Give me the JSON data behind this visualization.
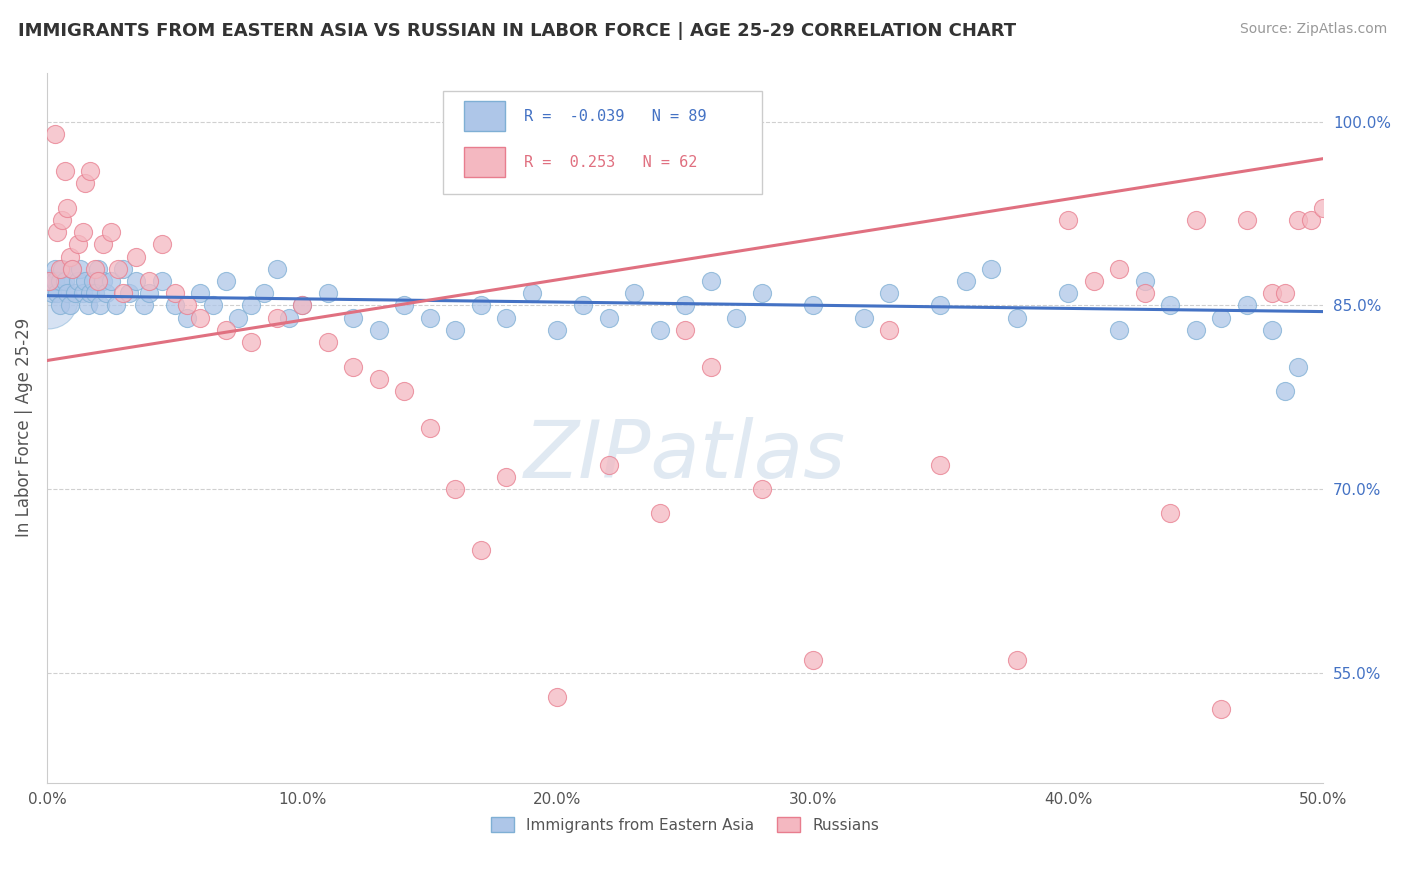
{
  "title": "IMMIGRANTS FROM EASTERN ASIA VS RUSSIAN IN LABOR FORCE | AGE 25-29 CORRELATION CHART",
  "source": "Source: ZipAtlas.com",
  "xlabel": "",
  "ylabel": "In Labor Force | Age 25-29",
  "x_tick_labels": [
    "0.0%",
    "10.0%",
    "20.0%",
    "30.0%",
    "40.0%",
    "50.0%"
  ],
  "x_tick_values": [
    0,
    10,
    20,
    30,
    40,
    50
  ],
  "y_tick_labels": [
    "55.0%",
    "70.0%",
    "85.0%",
    "100.0%"
  ],
  "y_tick_values": [
    55,
    70,
    85,
    100
  ],
  "xlim": [
    0,
    50
  ],
  "ylim": [
    46,
    104
  ],
  "series1_name": "Immigrants from Eastern Asia",
  "series1_color": "#aec6e8",
  "series1_edge_color": "#7fafd4",
  "series1_line_color": "#4472c4",
  "series1_R": -0.039,
  "series1_N": 89,
  "series2_name": "Russians",
  "series2_color": "#f4b8c1",
  "series2_edge_color": "#e87d8e",
  "series2_line_color": "#e07080",
  "series2_R": 0.253,
  "series2_N": 62,
  "watermark_text": "ZIPatlas",
  "background_color": "#ffffff",
  "scatter1_x": [
    0.1,
    0.2,
    0.3,
    0.3,
    0.4,
    0.5,
    0.5,
    0.6,
    0.7,
    0.8,
    0.9,
    1.0,
    1.1,
    1.2,
    1.3,
    1.4,
    1.5,
    1.6,
    1.7,
    1.8,
    1.9,
    2.0,
    2.1,
    2.2,
    2.3,
    2.5,
    2.7,
    3.0,
    3.2,
    3.5,
    3.8,
    4.0,
    4.5,
    5.0,
    5.5,
    6.0,
    6.5,
    7.0,
    7.5,
    8.0,
    8.5,
    9.0,
    9.5,
    10.0,
    11.0,
    12.0,
    13.0,
    14.0,
    15.0,
    16.0,
    17.0,
    18.0,
    19.0,
    20.0,
    21.0,
    22.0,
    23.0,
    24.0,
    25.0,
    26.0,
    27.0,
    28.0,
    30.0,
    32.0,
    33.0,
    35.0,
    36.0,
    37.0,
    38.0,
    40.0,
    42.0,
    43.0,
    44.0,
    45.0,
    46.0,
    47.0,
    48.0,
    48.5,
    49.0
  ],
  "scatter1_y": [
    87,
    86,
    88,
    87,
    86,
    87,
    85,
    88,
    87,
    86,
    85,
    88,
    86,
    87,
    88,
    86,
    87,
    85,
    86,
    87,
    86,
    88,
    85,
    87,
    86,
    87,
    85,
    88,
    86,
    87,
    85,
    86,
    87,
    85,
    84,
    86,
    85,
    87,
    84,
    85,
    86,
    88,
    84,
    85,
    86,
    84,
    83,
    85,
    84,
    83,
    85,
    84,
    86,
    83,
    85,
    84,
    86,
    83,
    85,
    87,
    84,
    86,
    85,
    84,
    86,
    85,
    87,
    88,
    84,
    86,
    83,
    87,
    85,
    83,
    84,
    85,
    83,
    78,
    80
  ],
  "scatter2_x": [
    0.1,
    0.3,
    0.4,
    0.5,
    0.6,
    0.7,
    0.8,
    0.9,
    1.0,
    1.2,
    1.4,
    1.5,
    1.7,
    1.9,
    2.0,
    2.2,
    2.5,
    2.8,
    3.0,
    3.5,
    4.0,
    4.5,
    5.0,
    5.5,
    6.0,
    7.0,
    8.0,
    9.0,
    10.0,
    11.0,
    12.0,
    13.0,
    14.0,
    15.0,
    16.0,
    17.0,
    18.0,
    20.0,
    22.0,
    24.0,
    25.0,
    26.0,
    28.0,
    30.0,
    33.0,
    35.0,
    38.0,
    40.0,
    41.0,
    42.0,
    43.0,
    44.0,
    45.0,
    46.0,
    47.0,
    48.0,
    48.5,
    49.0,
    49.5,
    50.0
  ],
  "scatter2_y": [
    87,
    99,
    91,
    88,
    92,
    96,
    93,
    89,
    88,
    90,
    91,
    95,
    96,
    88,
    87,
    90,
    91,
    88,
    86,
    89,
    87,
    90,
    86,
    85,
    84,
    83,
    82,
    84,
    85,
    82,
    80,
    79,
    78,
    75,
    70,
    65,
    71,
    53,
    72,
    68,
    83,
    80,
    70,
    56,
    83,
    72,
    56,
    92,
    87,
    88,
    86,
    68,
    92,
    52,
    92,
    86,
    86,
    92,
    92,
    93
  ],
  "trend1_x": [
    0,
    50
  ],
  "trend1_y": [
    85.8,
    84.5
  ],
  "trend2_x": [
    0,
    50
  ],
  "trend2_y": [
    80.5,
    97.0
  ]
}
